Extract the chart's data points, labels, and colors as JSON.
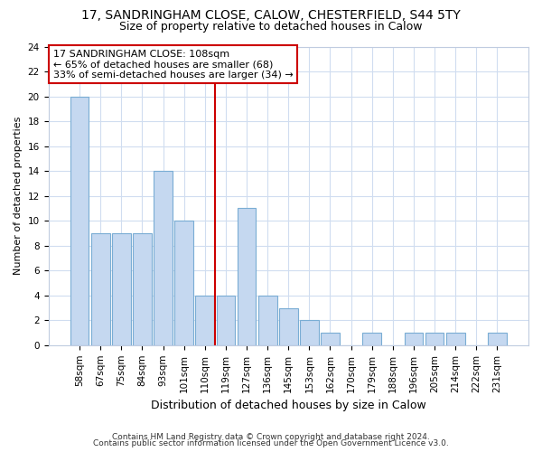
{
  "title1": "17, SANDRINGHAM CLOSE, CALOW, CHESTERFIELD, S44 5TY",
  "title2": "Size of property relative to detached houses in Calow",
  "xlabel": "Distribution of detached houses by size in Calow",
  "ylabel": "Number of detached properties",
  "categories": [
    "58sqm",
    "67sqm",
    "75sqm",
    "84sqm",
    "93sqm",
    "101sqm",
    "110sqm",
    "119sqm",
    "127sqm",
    "136sqm",
    "145sqm",
    "153sqm",
    "162sqm",
    "170sqm",
    "179sqm",
    "188sqm",
    "196sqm",
    "205sqm",
    "214sqm",
    "222sqm",
    "231sqm"
  ],
  "values": [
    20,
    9,
    9,
    9,
    14,
    10,
    4,
    4,
    11,
    4,
    3,
    2,
    1,
    0,
    1,
    0,
    1,
    1,
    1,
    0,
    1
  ],
  "bar_color": "#c5d8f0",
  "bar_edge_color": "#7aadd4",
  "red_line_x": 6.5,
  "annotation_line1": "17 SANDRINGHAM CLOSE: 108sqm",
  "annotation_line2": "← 65% of detached houses are smaller (68)",
  "annotation_line3": "33% of semi-detached houses are larger (34) →",
  "footer1": "Contains HM Land Registry data © Crown copyright and database right 2024.",
  "footer2": "Contains public sector information licensed under the Open Government Licence v3.0.",
  "ylim": [
    0,
    24
  ],
  "yticks": [
    0,
    2,
    4,
    6,
    8,
    10,
    12,
    14,
    16,
    18,
    20,
    22,
    24
  ],
  "background_color": "#ffffff",
  "grid_color": "#d0ddf0",
  "box_edge_color": "#cc0000",
  "title1_fontsize": 10,
  "title2_fontsize": 9,
  "xlabel_fontsize": 9,
  "ylabel_fontsize": 8,
  "tick_fontsize": 7.5,
  "footer_fontsize": 6.5,
  "ann_fontsize": 8
}
